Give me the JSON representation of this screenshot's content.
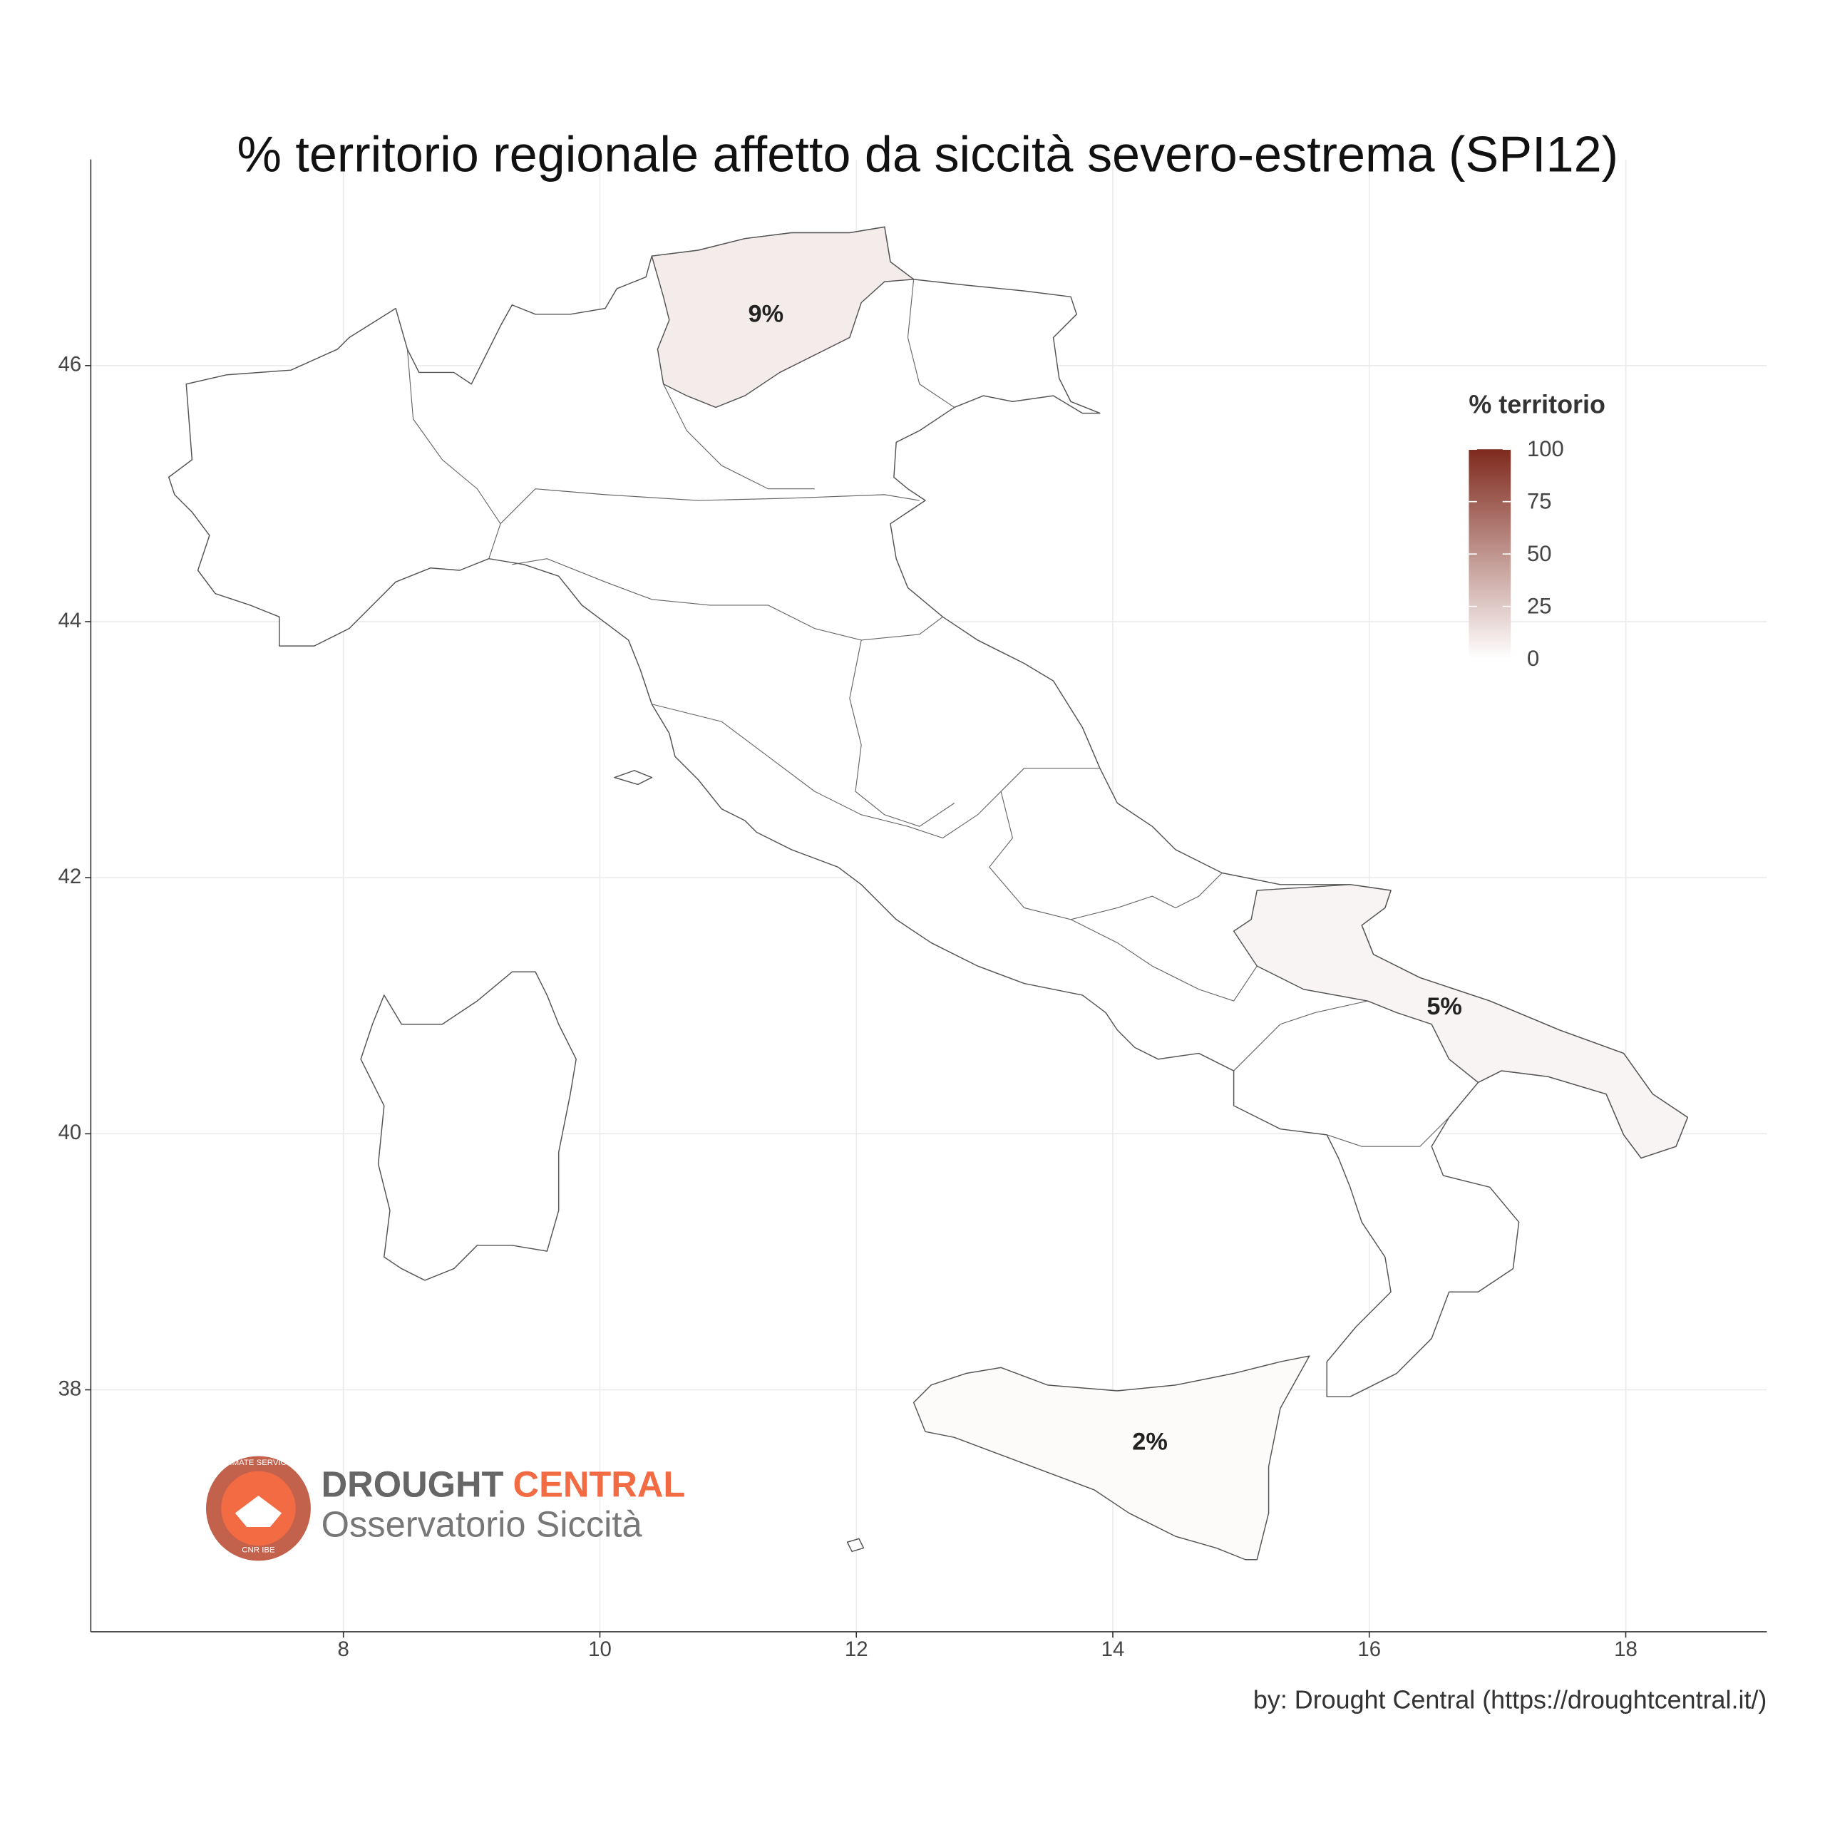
{
  "chart_data": {
    "type": "choropleth",
    "title": "% territorio regionale affetto da siccità severo-estrema (SPI12)",
    "caption": "by: Drought Central (https://droughtcentral.it/)",
    "values": [
      9,
      5,
      2
    ],
    "value_labels": [
      "9%",
      "5%",
      "2%"
    ],
    "xlim": [
      6.03,
      19.1
    ],
    "ylim": [
      36.11,
      47.61
    ],
    "xticks": [
      8,
      10,
      12,
      14,
      16,
      18
    ],
    "yticks": [
      38,
      40,
      42,
      44,
      46
    ],
    "grid": true,
    "legend": {
      "title": "% territorio",
      "lim": [
        0,
        100
      ],
      "ticks": [
        0,
        25,
        50,
        75,
        100
      ],
      "colors": [
        "#ffffff",
        "#7f2a1d"
      ]
    },
    "logo": {
      "word1": "DROUGHT",
      "word2": "CENTRAL",
      "subtitle": "Osservatorio Siccità",
      "ring_top": "CLIMATE SERVICES",
      "ring_bottom": "CNR IBE"
    }
  }
}
